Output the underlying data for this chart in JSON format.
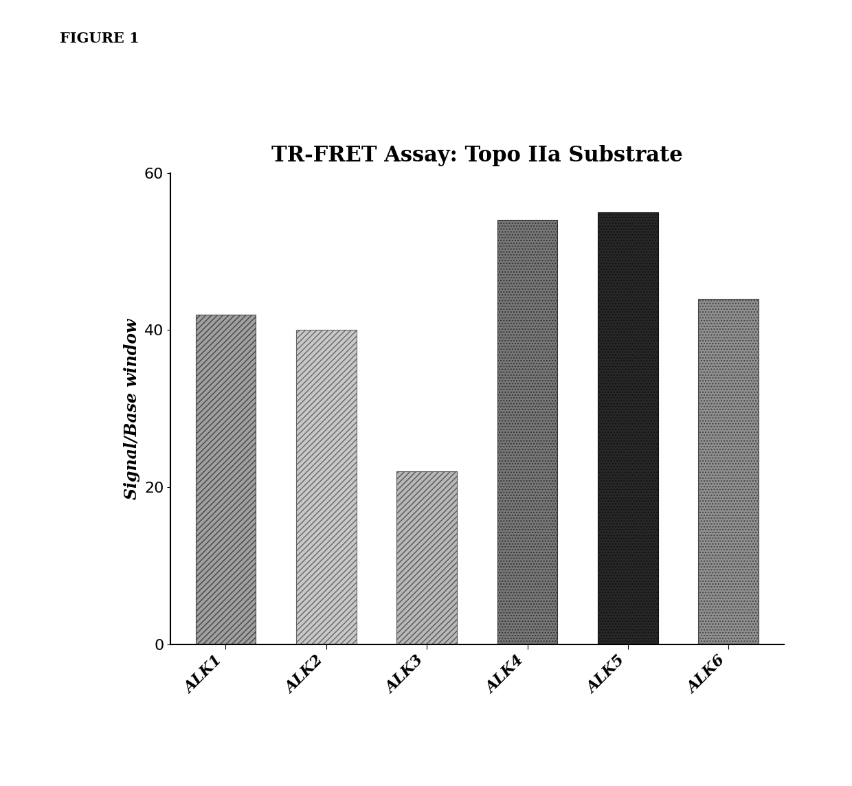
{
  "title": "TR-FRET Assay: Topo IIa Substrate",
  "ylabel": "Signal/Base window",
  "categories": [
    "ALK1",
    "ALK2",
    "ALK3",
    "ALK4",
    "ALK5",
    "ALK6"
  ],
  "values": [
    42,
    40,
    22,
    54,
    55,
    44
  ],
  "ylim": [
    0,
    60
  ],
  "yticks": [
    0,
    20,
    40,
    60
  ],
  "figure_label": "FIGURE 1",
  "background_color": "#ffffff",
  "title_fontsize": 22,
  "ylabel_fontsize": 17,
  "tick_fontsize": 16,
  "label_fontsize": 16,
  "figure_label_fontsize": 15,
  "bar_configs": [
    {
      "facecolor": "#a0a0a0",
      "edgecolor": "#444444",
      "hatch": "////",
      "linewidth": 0.8
    },
    {
      "facecolor": "#c8c8c8",
      "edgecolor": "#666666",
      "hatch": "////",
      "linewidth": 0.8
    },
    {
      "facecolor": "#b8b8b8",
      "edgecolor": "#555555",
      "hatch": "////",
      "linewidth": 0.8
    },
    {
      "facecolor": "#787878",
      "edgecolor": "#333333",
      "hatch": "....",
      "linewidth": 0.8
    },
    {
      "facecolor": "#282828",
      "edgecolor": "#111111",
      "hatch": "....",
      "linewidth": 0.8
    },
    {
      "facecolor": "#909090",
      "edgecolor": "#444444",
      "hatch": "....",
      "linewidth": 0.8
    }
  ]
}
